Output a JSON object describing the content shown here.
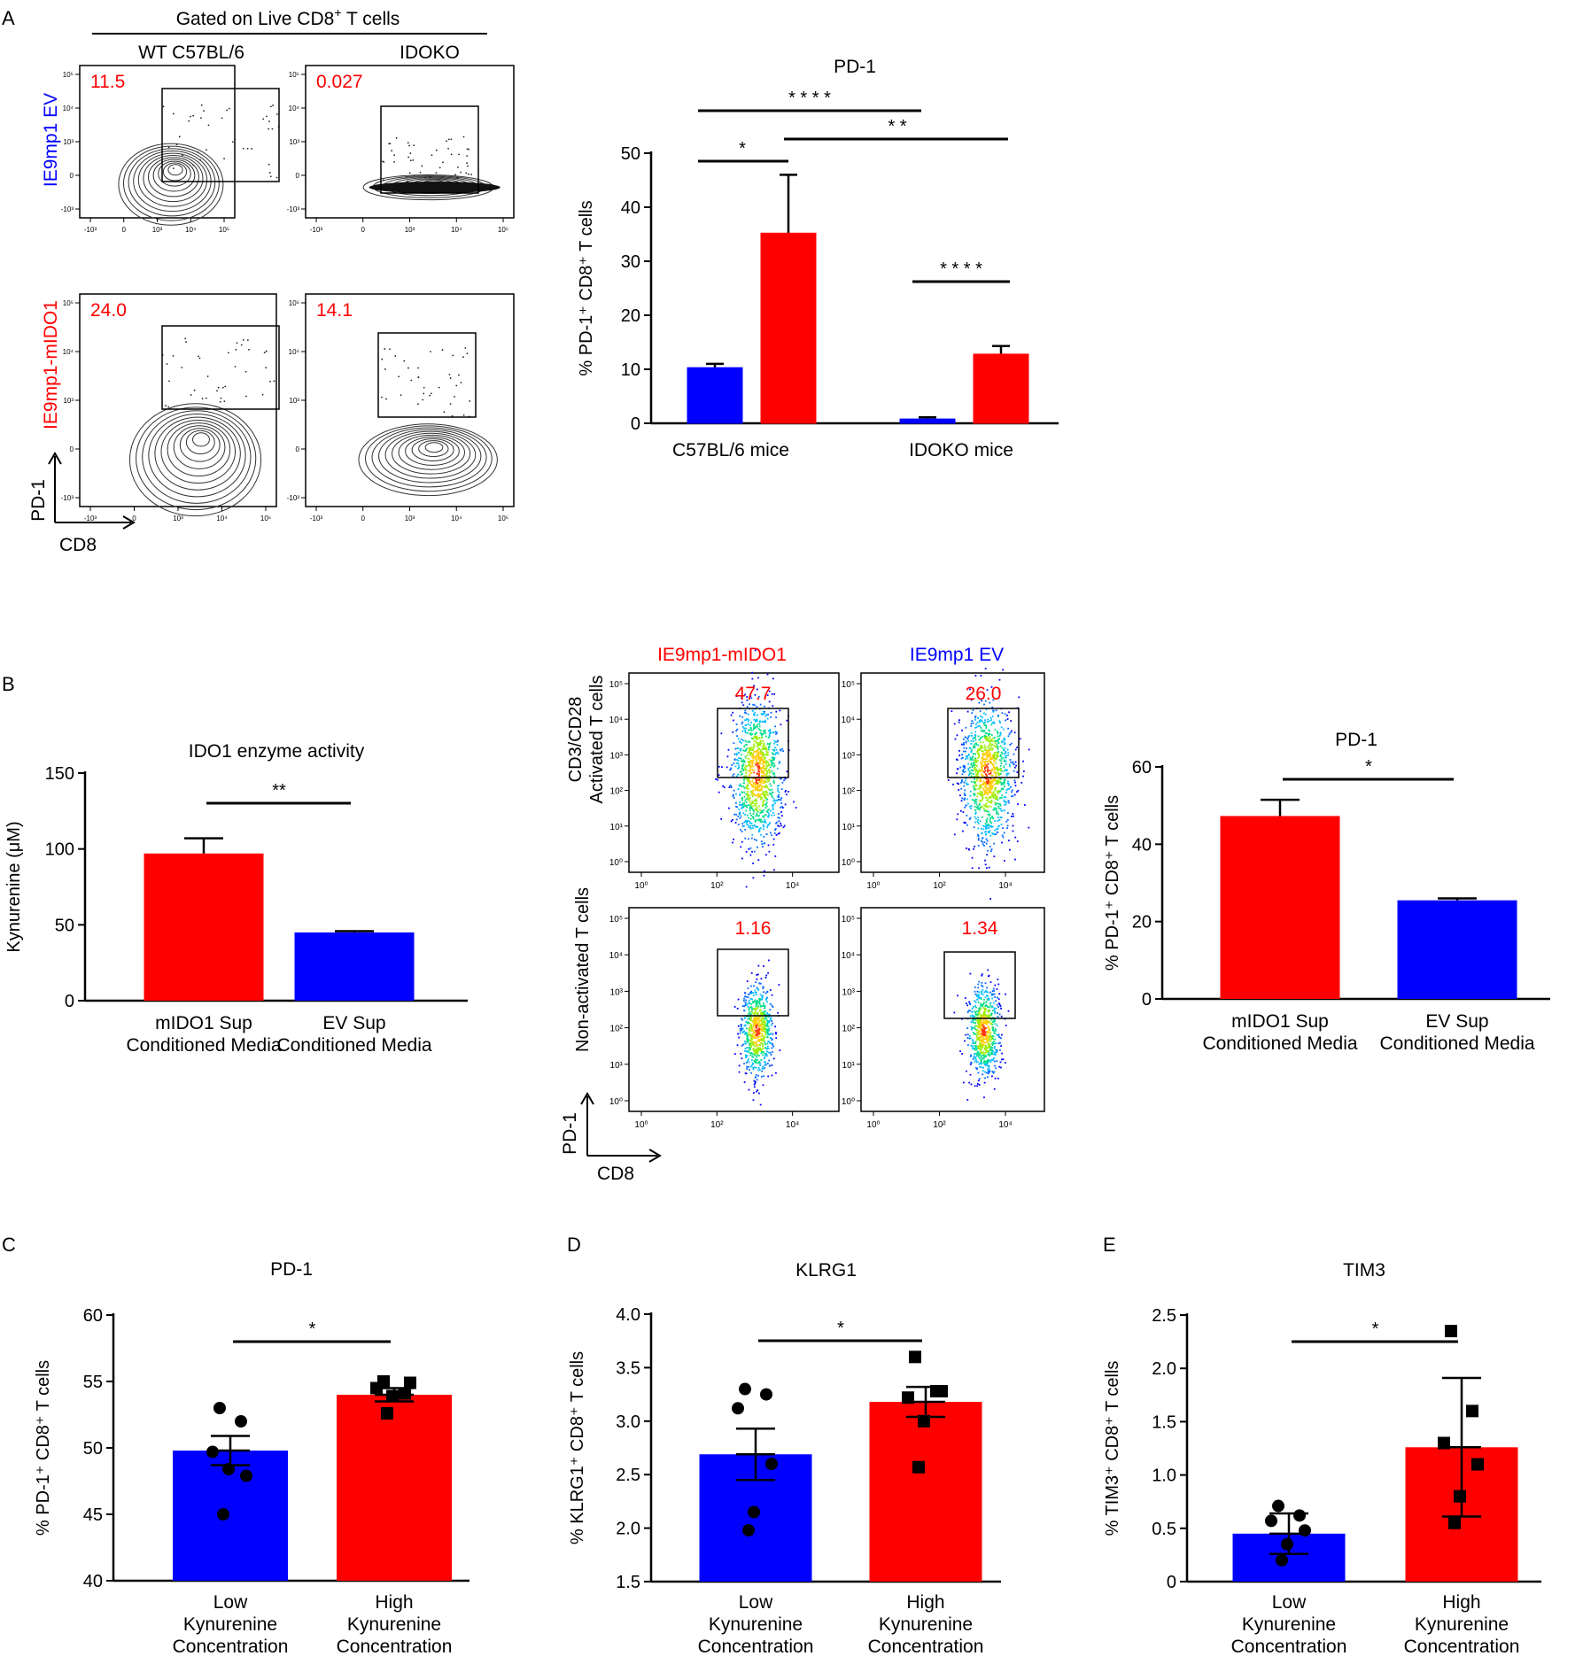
{
  "colors": {
    "red": "#ff0000",
    "blue": "#0000ff",
    "black": "#000000",
    "ev_text": "#0000ff",
    "ido_text": "#ff0000"
  },
  "panelA": {
    "letter": "A",
    "gate_header": "Gated on Live CD8",
    "gate_header_sup": "+",
    "gate_header_end": "T cells",
    "col_labels": [
      "WT C57BL/6",
      "IDOKO"
    ],
    "row_labels": [
      "IE9mp1 EV",
      "IE9mp1-mIDO1"
    ],
    "gate_values": [
      "11.5",
      "0.027",
      "24.0",
      "14.1"
    ],
    "axis_y": "PD-1",
    "axis_x": "CD8",
    "ticks_x": [
      "-10³",
      "0",
      "10³",
      "10⁴",
      "10⁵"
    ],
    "ticks_y": [
      "10⁵",
      "10⁴",
      "10³",
      "0",
      "-10³"
    ]
  },
  "panelB": {
    "letter": "B",
    "flow_col_labels": [
      "IE9mp1-mIDO1",
      "IE9mp1 EV"
    ],
    "flow_row_labels": [
      "CD3/CD28\nActivated T cells",
      "Non-activated T cells"
    ],
    "flow_row_label_lines": [
      [
        "CD3/CD28",
        "Activated T cells"
      ],
      [
        "Non-activated T cells"
      ]
    ],
    "gate_values": [
      "47.7",
      "26.0",
      "1.16",
      "1.34"
    ],
    "axis_y": "PD-1",
    "axis_x": "CD8",
    "ticks_x": [
      "10⁰",
      "10²",
      "10⁴"
    ],
    "ticks_y": [
      "10⁵",
      "10⁴",
      "10³",
      "10²",
      "10¹",
      "10⁰"
    ]
  },
  "chart_data": [
    {
      "id": "A_pd1",
      "type": "bar",
      "title": "PD-1",
      "ylabel": "% PD-1⁺ CD8⁺ T cells",
      "ylim": [
        0,
        50
      ],
      "yticks": [
        "0",
        "10",
        "20",
        "30",
        "40",
        "50"
      ],
      "groups": [
        "C57BL/6 mice",
        "IDOKO mice"
      ],
      "series": [
        {
          "name": "IE9mp1 EV",
          "color": "blue",
          "values": [
            10.3,
            0.8
          ],
          "errors": [
            0.7,
            0.3
          ]
        },
        {
          "name": "IE9mp1-mIDO1",
          "color": "red",
          "values": [
            35.2,
            12.8
          ],
          "errors": [
            10.8,
            1.5
          ]
        }
      ],
      "significance": [
        {
          "label": "* * * *",
          "from": "C57BL/6 mice EV",
          "to": "IDOKO mice EV"
        },
        {
          "label": "*",
          "from": "C57BL/6 mice EV",
          "to": "C57BL/6 mice mIDO1"
        },
        {
          "label": "* *",
          "from": "C57BL/6 mice mIDO1",
          "to": "IDOKO mice mIDO1"
        },
        {
          "label": "* * * *",
          "from": "IDOKO mice EV",
          "to": "IDOKO mice mIDO1"
        }
      ]
    },
    {
      "id": "B_kyn",
      "type": "bar",
      "title": "IDO1 enzyme activity",
      "ylabel": "Kynurenine (μM)",
      "ylim": [
        0,
        150
      ],
      "yticks": [
        "0",
        "50",
        "100",
        "150"
      ],
      "categories": [
        [
          "mIDO1 Sup",
          "Conditioned Media"
        ],
        [
          "EV Sup",
          "Conditioned Media"
        ]
      ],
      "values": [
        97,
        45
      ],
      "errors": [
        10,
        0.8
      ],
      "colors": [
        "red",
        "blue"
      ],
      "significance": [
        {
          "label": "**"
        }
      ]
    },
    {
      "id": "B_pd1",
      "type": "bar",
      "title": "PD-1",
      "ylabel": "% PD-1⁺ CD8⁺ T cells",
      "ylim": [
        0,
        60
      ],
      "yticks": [
        "0",
        "20",
        "40",
        "60"
      ],
      "categories": [
        [
          "mIDO1 Sup",
          "Conditioned Media"
        ],
        [
          "EV Sup",
          "Conditioned Media"
        ]
      ],
      "values": [
        47.3,
        25.5
      ],
      "errors": [
        4.2,
        0.5
      ],
      "colors": [
        "red",
        "blue"
      ],
      "significance": [
        {
          "label": "*"
        }
      ]
    },
    {
      "id": "C_pd1",
      "letter": "C",
      "type": "bar",
      "title": "PD-1",
      "ylabel": "% PD-1⁺ CD8⁺ T cells",
      "ylim": [
        40,
        60
      ],
      "yticks": [
        "40",
        "45",
        "50",
        "55",
        "60"
      ],
      "categories": [
        [
          "Low",
          "Kynurenine",
          "Concentration"
        ],
        [
          "High",
          "Kynurenine",
          "Concentration"
        ]
      ],
      "values": [
        49.8,
        54.0
      ],
      "errors": [
        1.1,
        0.5
      ],
      "colors": [
        "blue",
        "red"
      ],
      "points": [
        [
          53.0,
          52.0,
          49.7,
          47.9,
          48.4,
          45.0
        ],
        [
          55.0,
          54.1,
          54.5,
          54.9,
          53.9,
          52.6
        ]
      ],
      "markers": [
        "circle",
        "square"
      ],
      "significance": [
        {
          "label": "*"
        }
      ]
    },
    {
      "id": "D_klrg1",
      "letter": "D",
      "type": "bar",
      "title": "KLRG1",
      "ylabel": "% KLRG1⁺ CD8⁺ T cells",
      "ylim": [
        1.5,
        4.0
      ],
      "yticks": [
        "1.5",
        "2.0",
        "2.5",
        "3.0",
        "3.5",
        "4.0"
      ],
      "categories": [
        [
          "Low",
          "Kynurenine",
          "Concentration"
        ],
        [
          "High",
          "Kynurenine",
          "Concentration"
        ]
      ],
      "values": [
        2.69,
        3.18
      ],
      "errors": [
        0.24,
        0.14
      ],
      "colors": [
        "blue",
        "red"
      ],
      "points": [
        [
          3.3,
          3.25,
          3.12,
          2.6,
          2.15,
          1.98
        ],
        [
          3.6,
          3.28,
          3.22,
          3.28,
          3.0,
          2.57
        ]
      ],
      "markers": [
        "circle",
        "square"
      ],
      "significance": [
        {
          "label": "*"
        }
      ]
    },
    {
      "id": "E_tim3",
      "letter": "E",
      "type": "bar",
      "title": "TIM3",
      "ylabel": "% TIM3⁺ CD8⁺ T cells",
      "ylim": [
        0,
        2.5
      ],
      "yticks": [
        "0",
        "0.5",
        "1.0",
        "1.5",
        "2.0",
        "2.5"
      ],
      "categories": [
        [
          "Low",
          "Kynurenine",
          "Concentration"
        ],
        [
          "High",
          "Kynurenine",
          "Concentration"
        ]
      ],
      "values": [
        0.45,
        1.26
      ],
      "errors": [
        0.19,
        0.65
      ],
      "colors": [
        "blue",
        "red"
      ],
      "points": [
        [
          0.71,
          0.62,
          0.57,
          0.48,
          0.35,
          0.2
        ],
        [
          2.35,
          1.6,
          1.3,
          1.1,
          0.8,
          0.55
        ]
      ],
      "markers": [
        "circle",
        "square"
      ],
      "significance": [
        {
          "label": "*"
        }
      ]
    }
  ]
}
